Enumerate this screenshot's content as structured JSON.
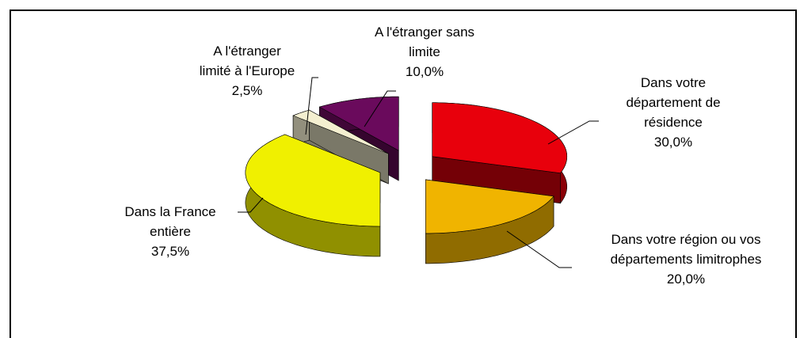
{
  "chart_data": {
    "type": "pie3d",
    "categories": [
      "Dans votre\ndépartement de\nrésidence",
      "Dans votre région ou vos\ndépartements limitrophes",
      "Dans la France\nentière",
      "A l'étranger\nlimité à l'Europe",
      "A l'étranger sans\nlimite"
    ],
    "values": [
      30,
      20,
      37.5,
      2.5,
      10
    ],
    "value_labels": [
      "30,0%",
      "20,0%",
      "37,5%",
      "2,5%",
      "10,0%"
    ],
    "colors": [
      "#e8000c",
      "#f0b400",
      "#f0f000",
      "#f4efd0",
      "#6a0a5c"
    ]
  }
}
